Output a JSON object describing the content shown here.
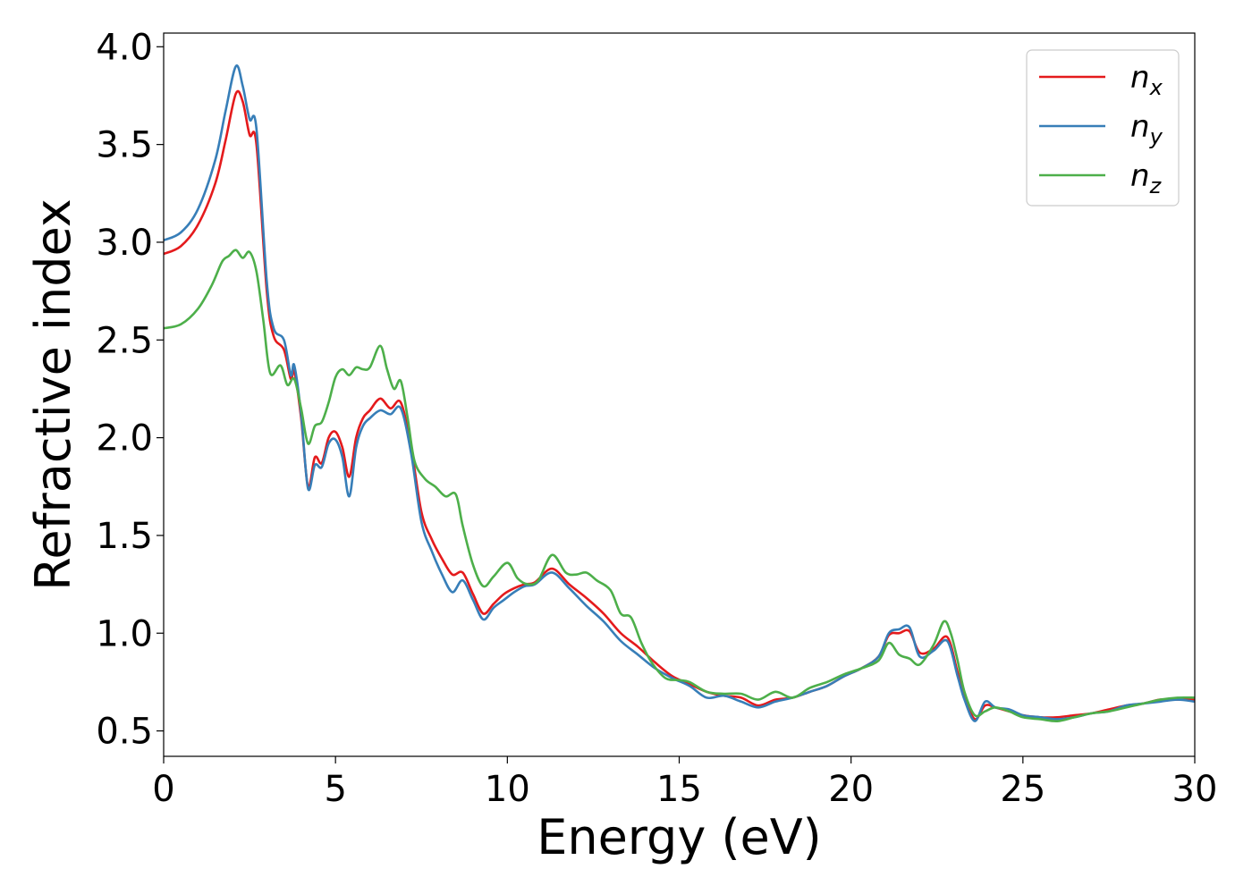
{
  "chart_data": {
    "type": "line",
    "title": "",
    "xlabel": "Energy (eV)",
    "ylabel": "Refractive index",
    "xlim": [
      0,
      30
    ],
    "ylim": [
      0.37,
      4.07
    ],
    "xticks": [
      0,
      5,
      10,
      15,
      20,
      25,
      30
    ],
    "xtick_labels": [
      "0",
      "5",
      "10",
      "15",
      "20",
      "25",
      "30"
    ],
    "yticks": [
      0.5,
      1.0,
      1.5,
      2.0,
      2.5,
      3.0,
      3.5,
      4.0
    ],
    "ytick_labels": [
      "0.5",
      "1.0",
      "1.5",
      "2.0",
      "2.5",
      "3.0",
      "3.5",
      "4.0"
    ],
    "grid": false,
    "legend_position": "top-right",
    "series": [
      {
        "name": "n_x",
        "legend_base": "n",
        "legend_sub": "x",
        "color": "#e41a1c",
        "x": [
          0,
          0.5,
          1.0,
          1.5,
          1.8,
          2.1,
          2.3,
          2.5,
          2.7,
          3.0,
          3.2,
          3.5,
          3.7,
          3.8,
          4.0,
          4.2,
          4.4,
          4.6,
          4.8,
          5.0,
          5.2,
          5.4,
          5.6,
          5.8,
          6.0,
          6.3,
          6.6,
          6.9,
          7.2,
          7.5,
          7.8,
          8.1,
          8.4,
          8.7,
          9.0,
          9.3,
          9.6,
          9.9,
          10.2,
          10.5,
          10.8,
          11.3,
          11.8,
          12.3,
          12.8,
          13.3,
          13.8,
          14.3,
          14.8,
          15.3,
          15.8,
          16.3,
          16.8,
          17.3,
          17.8,
          18.3,
          18.8,
          19.3,
          19.8,
          20.3,
          20.8,
          21.1,
          21.4,
          21.7,
          22.0,
          22.4,
          22.8,
          23.1,
          23.3,
          23.6,
          23.9,
          24.2,
          24.6,
          25.0,
          25.5,
          26.0,
          26.5,
          27.0,
          27.5,
          28.0,
          28.5,
          29.0,
          29.5,
          30.0
        ],
        "y": [
          2.94,
          2.98,
          3.09,
          3.3,
          3.52,
          3.76,
          3.72,
          3.55,
          3.5,
          2.75,
          2.52,
          2.45,
          2.3,
          2.34,
          2.1,
          1.75,
          1.9,
          1.87,
          2.0,
          2.03,
          1.95,
          1.8,
          2.0,
          2.1,
          2.14,
          2.2,
          2.15,
          2.18,
          1.95,
          1.62,
          1.48,
          1.38,
          1.3,
          1.31,
          1.2,
          1.1,
          1.15,
          1.2,
          1.23,
          1.25,
          1.26,
          1.33,
          1.25,
          1.18,
          1.1,
          1.0,
          0.93,
          0.85,
          0.78,
          0.74,
          0.7,
          0.68,
          0.67,
          0.63,
          0.66,
          0.67,
          0.7,
          0.73,
          0.78,
          0.82,
          0.88,
          0.99,
          1.0,
          1.01,
          0.9,
          0.92,
          0.98,
          0.8,
          0.68,
          0.56,
          0.63,
          0.62,
          0.6,
          0.58,
          0.57,
          0.57,
          0.58,
          0.59,
          0.61,
          0.63,
          0.64,
          0.66,
          0.66,
          0.66
        ]
      },
      {
        "name": "n_y",
        "legend_base": "n",
        "legend_sub": "y",
        "color": "#377eb8",
        "x": [
          0,
          0.5,
          1.0,
          1.5,
          1.8,
          2.1,
          2.3,
          2.5,
          2.7,
          3.0,
          3.2,
          3.5,
          3.7,
          3.8,
          4.0,
          4.2,
          4.4,
          4.6,
          4.8,
          5.0,
          5.2,
          5.4,
          5.6,
          5.8,
          6.0,
          6.3,
          6.6,
          6.9,
          7.2,
          7.5,
          7.8,
          8.1,
          8.4,
          8.7,
          9.0,
          9.3,
          9.6,
          9.9,
          10.2,
          10.5,
          10.8,
          11.3,
          11.8,
          12.3,
          12.8,
          13.3,
          13.8,
          14.3,
          14.8,
          15.3,
          15.8,
          16.3,
          16.8,
          17.3,
          17.8,
          18.3,
          18.8,
          19.3,
          19.8,
          20.3,
          20.8,
          21.1,
          21.4,
          21.7,
          22.0,
          22.4,
          22.8,
          23.1,
          23.3,
          23.6,
          23.9,
          24.2,
          24.6,
          25.0,
          25.5,
          26.0,
          26.5,
          27.0,
          27.5,
          28.0,
          28.5,
          29.0,
          29.5,
          30.0
        ],
        "y": [
          3.01,
          3.05,
          3.17,
          3.42,
          3.67,
          3.9,
          3.8,
          3.63,
          3.58,
          2.8,
          2.56,
          2.5,
          2.32,
          2.37,
          2.12,
          1.74,
          1.86,
          1.85,
          1.97,
          1.99,
          1.9,
          1.7,
          1.95,
          2.06,
          2.1,
          2.14,
          2.12,
          2.15,
          1.92,
          1.57,
          1.42,
          1.3,
          1.21,
          1.27,
          1.17,
          1.07,
          1.13,
          1.17,
          1.21,
          1.24,
          1.25,
          1.31,
          1.23,
          1.14,
          1.06,
          0.96,
          0.89,
          0.82,
          0.77,
          0.73,
          0.67,
          0.68,
          0.65,
          0.62,
          0.65,
          0.67,
          0.7,
          0.73,
          0.78,
          0.82,
          0.88,
          1.0,
          1.02,
          1.03,
          0.88,
          0.91,
          0.96,
          0.78,
          0.66,
          0.55,
          0.65,
          0.62,
          0.61,
          0.58,
          0.57,
          0.56,
          0.57,
          0.59,
          0.6,
          0.63,
          0.64,
          0.65,
          0.66,
          0.65
        ]
      },
      {
        "name": "n_z",
        "legend_base": "n",
        "legend_sub": "z",
        "color": "#4daf4a",
        "x": [
          0,
          0.5,
          1.0,
          1.4,
          1.7,
          1.9,
          2.1,
          2.3,
          2.5,
          2.7,
          2.9,
          3.1,
          3.4,
          3.6,
          3.8,
          4.0,
          4.2,
          4.4,
          4.6,
          4.8,
          5.0,
          5.2,
          5.4,
          5.6,
          5.8,
          6.0,
          6.3,
          6.5,
          6.7,
          6.9,
          7.1,
          7.3,
          7.6,
          7.9,
          8.2,
          8.5,
          8.7,
          9.0,
          9.3,
          9.6,
          10.0,
          10.3,
          10.6,
          10.9,
          11.3,
          11.7,
          12.0,
          12.3,
          12.6,
          13.0,
          13.3,
          13.6,
          13.9,
          14.2,
          14.6,
          15.0,
          15.3,
          15.8,
          16.3,
          16.8,
          17.3,
          17.8,
          18.3,
          18.8,
          19.3,
          19.8,
          20.3,
          20.8,
          21.1,
          21.4,
          21.7,
          22.0,
          22.4,
          22.7,
          22.9,
          23.1,
          23.3,
          23.6,
          23.9,
          24.2,
          24.6,
          25.0,
          25.5,
          26.0,
          26.5,
          27.0,
          27.5,
          28.0,
          28.5,
          29.0,
          29.5,
          30.0
        ],
        "y": [
          2.56,
          2.58,
          2.66,
          2.78,
          2.9,
          2.93,
          2.96,
          2.92,
          2.95,
          2.85,
          2.6,
          2.33,
          2.37,
          2.27,
          2.3,
          2.15,
          1.97,
          2.06,
          2.08,
          2.18,
          2.31,
          2.35,
          2.32,
          2.36,
          2.35,
          2.36,
          2.47,
          2.35,
          2.25,
          2.29,
          2.1,
          1.88,
          1.79,
          1.75,
          1.7,
          1.71,
          1.55,
          1.35,
          1.24,
          1.29,
          1.36,
          1.28,
          1.25,
          1.27,
          1.4,
          1.31,
          1.3,
          1.31,
          1.27,
          1.22,
          1.1,
          1.08,
          0.95,
          0.85,
          0.77,
          0.76,
          0.75,
          0.7,
          0.69,
          0.69,
          0.66,
          0.7,
          0.67,
          0.72,
          0.75,
          0.79,
          0.82,
          0.86,
          0.95,
          0.89,
          0.87,
          0.84,
          0.94,
          1.06,
          1.0,
          0.86,
          0.7,
          0.58,
          0.6,
          0.62,
          0.6,
          0.57,
          0.56,
          0.55,
          0.57,
          0.59,
          0.6,
          0.62,
          0.64,
          0.66,
          0.67,
          0.67
        ]
      }
    ]
  }
}
